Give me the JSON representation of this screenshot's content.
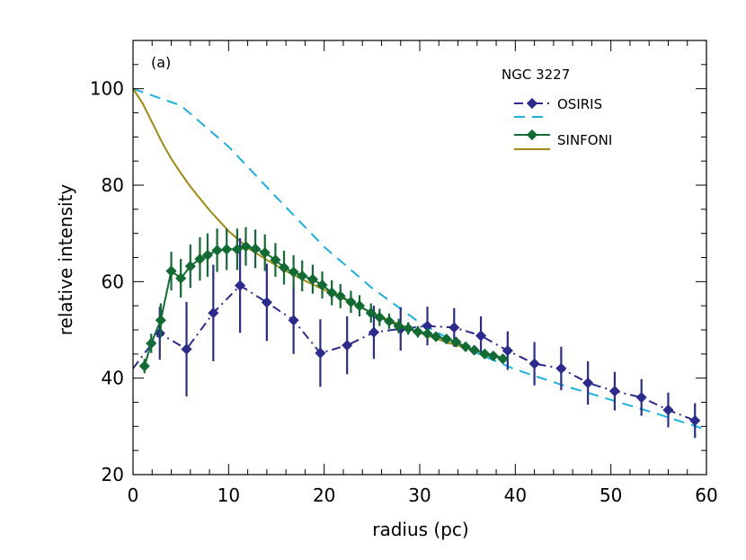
{
  "chart_data": {
    "type": "line",
    "panel_label": "(a)",
    "xlabel": "radius (pc)",
    "ylabel": "relative intensity",
    "xlim": [
      0,
      60
    ],
    "ylim": [
      20,
      110
    ],
    "x_ticks": [
      0,
      10,
      20,
      30,
      40,
      50,
      60
    ],
    "y_ticks": [
      20,
      40,
      60,
      80,
      100
    ],
    "x_tick_labels": [
      "0",
      "10",
      "20",
      "30",
      "40",
      "50",
      "60"
    ],
    "y_tick_labels": [
      "20",
      "40",
      "60",
      "80",
      "100"
    ],
    "grid": false,
    "legend_position": "top-right",
    "legend_title": "NGC 3227",
    "legend_labels": {
      "osiris": "OSIRIS",
      "sinfoni": "SINFONI"
    },
    "colors": {
      "osiris_data": "#2b2b8f",
      "osiris_model": "#1ab0e0",
      "sinfoni_data": "#116b33",
      "sinfoni_model": "#a08a10",
      "axis": "#000000"
    },
    "series": [
      {
        "name": "OSIRIS",
        "kind": "data",
        "line_style": "dash-dot",
        "x": [
          0,
          2.8,
          5.6,
          8.4,
          11.2,
          14.0,
          16.8,
          19.6,
          22.4,
          25.2,
          28.0,
          30.8,
          33.6,
          36.4,
          39.2,
          42.0,
          44.8,
          47.6,
          50.4,
          53.2,
          56.0,
          58.8
        ],
        "y": [
          42.0,
          49.3,
          46.0,
          53.5,
          59.2,
          55.7,
          52.0,
          45.2,
          46.8,
          49.5,
          50.2,
          50.8,
          50.5,
          48.8,
          45.7,
          43.0,
          42.0,
          39.0,
          37.3,
          36.0,
          33.4,
          31.2
        ],
        "err": [
          0,
          5.5,
          9.8,
          10.0,
          9.8,
          8.0,
          7.0,
          7.0,
          6.0,
          5.5,
          4.5,
          4.0,
          4.0,
          4.0,
          4.0,
          4.5,
          4.5,
          4.5,
          4.0,
          3.8,
          3.6,
          3.6
        ]
      },
      {
        "name": "",
        "kind": "model",
        "line_style": "dashed",
        "x": [
          0,
          5,
          10,
          15,
          20,
          25,
          30,
          35,
          40,
          45,
          50,
          55,
          60
        ],
        "y": [
          100.0,
          96.5,
          88.0,
          77.5,
          67.2,
          58.7,
          51.5,
          46.0,
          41.8,
          38.5,
          35.5,
          32.5,
          29.3
        ]
      },
      {
        "name": "SINFONI",
        "kind": "data",
        "line_style": "solid",
        "x": [
          1.2,
          1.9,
          2.9,
          4.0,
          5.0,
          6.0,
          7.0,
          7.8,
          8.8,
          9.8,
          10.9,
          11.8,
          12.8,
          13.8,
          14.9,
          15.8,
          16.8,
          17.7,
          18.8,
          19.8,
          20.8,
          21.7,
          22.8,
          23.7,
          24.9,
          25.8,
          26.8,
          27.8,
          28.8,
          29.8,
          30.8,
          31.7,
          32.8,
          33.8,
          34.8,
          35.7,
          36.8,
          37.7,
          38.7
        ],
        "y": [
          42.5,
          47.2,
          52.0,
          62.2,
          60.7,
          63.2,
          64.7,
          65.5,
          66.5,
          66.7,
          66.7,
          67.3,
          66.8,
          66.0,
          64.5,
          62.9,
          62.0,
          61.2,
          60.5,
          59.3,
          57.7,
          57.0,
          55.8,
          55.0,
          53.5,
          52.6,
          51.8,
          50.8,
          50.3,
          49.6,
          49.2,
          48.6,
          48.1,
          47.5,
          46.5,
          45.8,
          45.0,
          44.6,
          44.0
        ],
        "err": [
          1.5,
          2.0,
          3.5,
          4.0,
          4.0,
          4.5,
          4.5,
          4.5,
          4.5,
          4.3,
          4.3,
          4.0,
          4.0,
          3.8,
          3.5,
          3.5,
          3.5,
          3.2,
          3.0,
          2.8,
          2.6,
          2.5,
          2.3,
          2.2,
          2.0,
          1.8,
          1.6,
          1.5,
          1.3,
          1.2,
          1.2,
          1.0,
          1.0,
          1.0,
          0.9,
          0.9,
          0.9,
          0.8,
          0.8
        ]
      },
      {
        "name": "",
        "kind": "model",
        "line_style": "solid",
        "x": [
          0,
          1,
          2,
          3,
          4,
          5,
          6,
          8,
          10,
          12,
          14,
          16,
          18,
          20,
          22,
          25,
          28,
          30,
          33,
          36,
          39
        ],
        "y": [
          100.0,
          97.0,
          93.0,
          89.0,
          85.5,
          82.5,
          79.7,
          74.8,
          70.5,
          67.0,
          64.5,
          62.2,
          60.2,
          58.3,
          56.5,
          53.5,
          51.0,
          49.4,
          47.3,
          45.6,
          44.1
        ]
      }
    ]
  }
}
